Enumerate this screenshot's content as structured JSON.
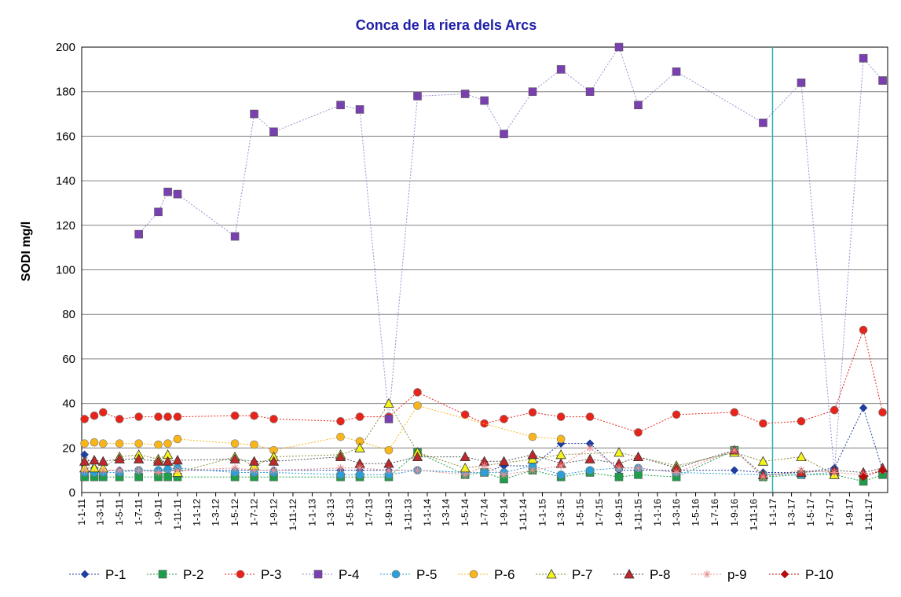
{
  "chart_data": {
    "type": "line",
    "title": "Conca de la riera dels Arcs",
    "ylabel": "SODI   mg/l",
    "xlabel": "",
    "ylim": [
      0,
      200
    ],
    "y_ticks": [
      0,
      20,
      40,
      60,
      80,
      100,
      120,
      140,
      160,
      180,
      200
    ],
    "x_range": [
      "2011-01-01",
      "2017-12-31"
    ],
    "x_ticks": [
      "1-1-11",
      "1-3-11",
      "1-5-11",
      "1-7-11",
      "1-9-11",
      "1-11-11",
      "1-1-12",
      "1-3-12",
      "1-5-12",
      "1-7-12",
      "1-9-12",
      "1-11-12",
      "1-1-13",
      "1-3-13",
      "1-5-13",
      "1-7-13",
      "1-9-13",
      "1-11-13",
      "1-1-14",
      "1-3-14",
      "1-5-14",
      "1-7-14",
      "1-9-14",
      "1-11-14",
      "1-1-15",
      "1-3-15",
      "1-5-15",
      "1-7-15",
      "1-9-15",
      "1-11-15",
      "1-1-16",
      "1-3-16",
      "1-5-16",
      "1-7-16",
      "1-9-16",
      "1-11-16",
      "1-1-17",
      "1-3-17",
      "1-5-17",
      "1-7-17",
      "1-9-17",
      "1-11-17"
    ],
    "grid": "horizontal",
    "legend_position": "bottom",
    "vertical_marker": "2016-12-31",
    "series": [
      {
        "name": "P-1",
        "color": "#1f3f9f",
        "marker": "diamond",
        "line": "#1f3f9f",
        "points": [
          [
            "2011-01-10",
            17
          ],
          [
            "2011-02-10",
            11
          ],
          [
            "2011-03-10",
            10
          ],
          [
            "2011-05-01",
            10
          ],
          [
            "2011-07-01",
            10
          ],
          [
            "2011-09-01",
            10
          ],
          [
            "2011-10-01",
            10
          ],
          [
            "2011-11-01",
            10
          ],
          [
            "2012-05-01",
            10
          ],
          [
            "2012-07-01",
            10
          ],
          [
            "2012-09-01",
            10
          ],
          [
            "2013-04-01",
            10
          ],
          [
            "2013-06-01",
            10
          ],
          [
            "2013-09-01",
            10
          ],
          [
            "2013-12-01",
            10
          ],
          [
            "2014-05-01",
            9
          ],
          [
            "2014-07-01",
            9
          ],
          [
            "2014-09-01",
            12
          ],
          [
            "2014-12-01",
            12
          ],
          [
            "2015-03-01",
            22
          ],
          [
            "2015-06-01",
            22
          ],
          [
            "2015-09-01",
            10
          ],
          [
            "2015-11-01",
            10
          ],
          [
            "2016-03-01",
            10
          ],
          [
            "2016-09-01",
            10
          ],
          [
            "2016-12-01",
            9
          ],
          [
            "2017-04-01",
            9
          ],
          [
            "2017-07-15",
            11
          ],
          [
            "2017-10-15",
            38
          ],
          [
            "2017-12-15",
            10
          ]
        ]
      },
      {
        "name": "P-2",
        "color": "#1e9e4a",
        "marker": "square",
        "line": "#1e9e4a",
        "points": [
          [
            "2011-01-10",
            7
          ],
          [
            "2011-02-10",
            7
          ],
          [
            "2011-03-10",
            7
          ],
          [
            "2011-05-01",
            7
          ],
          [
            "2011-07-01",
            7
          ],
          [
            "2011-09-01",
            7
          ],
          [
            "2011-10-01",
            7
          ],
          [
            "2011-11-01",
            7
          ],
          [
            "2012-05-01",
            7
          ],
          [
            "2012-07-01",
            7
          ],
          [
            "2012-09-01",
            7
          ],
          [
            "2013-04-01",
            7
          ],
          [
            "2013-06-01",
            7
          ],
          [
            "2013-09-01",
            7
          ],
          [
            "2013-12-01",
            18
          ],
          [
            "2014-05-01",
            8
          ],
          [
            "2014-07-01",
            9
          ],
          [
            "2014-09-01",
            6
          ],
          [
            "2014-12-01",
            10
          ],
          [
            "2015-03-01",
            7
          ],
          [
            "2015-06-01",
            9
          ],
          [
            "2015-09-01",
            7
          ],
          [
            "2015-11-01",
            8
          ],
          [
            "2016-03-01",
            7
          ],
          [
            "2016-09-01",
            19
          ],
          [
            "2016-12-01",
            7
          ],
          [
            "2017-04-01",
            8
          ],
          [
            "2017-07-15",
            8
          ],
          [
            "2017-10-15",
            5
          ],
          [
            "2017-12-15",
            8
          ]
        ]
      },
      {
        "name": "P-3",
        "color": "#e8231a",
        "marker": "circle",
        "line": "#e8231a",
        "points": [
          [
            "2011-01-10",
            33
          ],
          [
            "2011-02-10",
            34.5
          ],
          [
            "2011-03-10",
            36
          ],
          [
            "2011-05-01",
            33
          ],
          [
            "2011-07-01",
            34
          ],
          [
            "2011-09-01",
            34
          ],
          [
            "2011-10-01",
            34
          ],
          [
            "2011-11-01",
            34
          ],
          [
            "2012-05-01",
            34.5
          ],
          [
            "2012-07-01",
            34.5
          ],
          [
            "2012-09-01",
            33
          ],
          [
            "2013-04-01",
            32
          ],
          [
            "2013-06-01",
            34
          ],
          [
            "2013-09-01",
            34
          ],
          [
            "2013-12-01",
            45
          ],
          [
            "2014-05-01",
            35
          ],
          [
            "2014-07-01",
            31
          ],
          [
            "2014-09-01",
            33
          ],
          [
            "2014-12-01",
            36
          ],
          [
            "2015-03-01",
            34
          ],
          [
            "2015-06-01",
            34
          ],
          [
            "2015-11-01",
            27
          ],
          [
            "2016-03-01",
            35
          ],
          [
            "2016-09-01",
            36
          ],
          [
            "2016-12-01",
            31
          ],
          [
            "2017-04-01",
            32
          ],
          [
            "2017-07-15",
            37
          ],
          [
            "2017-10-15",
            73
          ],
          [
            "2017-12-15",
            36
          ]
        ]
      },
      {
        "name": "P-4",
        "color": "#7a3fb0",
        "marker": "square",
        "line": "#9a8fd0",
        "points": [
          [
            "2011-07-01",
            116
          ],
          [
            "2011-09-01",
            126
          ],
          [
            "2011-10-01",
            135
          ],
          [
            "2011-11-01",
            134
          ],
          [
            "2012-05-01",
            115
          ],
          [
            "2012-07-01",
            170
          ],
          [
            "2012-09-01",
            162
          ],
          [
            "2013-04-01",
            174
          ],
          [
            "2013-06-01",
            172
          ],
          [
            "2013-09-01",
            33
          ],
          [
            "2013-12-01",
            178
          ],
          [
            "2014-05-01",
            179
          ],
          [
            "2014-07-01",
            176
          ],
          [
            "2014-09-01",
            161
          ],
          [
            "2014-12-01",
            180
          ],
          [
            "2015-03-01",
            190
          ],
          [
            "2015-06-01",
            180
          ],
          [
            "2015-09-01",
            200
          ],
          [
            "2015-11-01",
            174
          ],
          [
            "2016-03-01",
            189
          ],
          [
            "2016-12-01",
            166
          ],
          [
            "2017-04-01",
            184
          ],
          [
            "2017-07-15",
            9
          ],
          [
            "2017-10-15",
            195
          ],
          [
            "2017-12-15",
            185
          ]
        ]
      },
      {
        "name": "P-5",
        "color": "#2b9fd9",
        "marker": "circle",
        "line": "#2b9fd9",
        "points": [
          [
            "2011-01-10",
            9
          ],
          [
            "2011-02-10",
            9
          ],
          [
            "2011-03-10",
            9
          ],
          [
            "2011-05-01",
            9
          ],
          [
            "2011-07-01",
            10
          ],
          [
            "2011-09-01",
            10
          ],
          [
            "2011-10-01",
            10.5
          ],
          [
            "2011-11-01",
            11
          ],
          [
            "2012-05-01",
            9
          ],
          [
            "2012-07-01",
            9
          ],
          [
            "2012-09-01",
            9
          ],
          [
            "2013-04-01",
            8
          ],
          [
            "2013-06-01",
            8
          ],
          [
            "2013-09-01",
            8
          ],
          [
            "2013-12-01",
            10
          ],
          [
            "2014-05-01",
            9
          ],
          [
            "2014-07-01",
            9
          ],
          [
            "2014-09-01",
            9
          ],
          [
            "2014-12-01",
            12
          ],
          [
            "2015-03-01",
            8
          ],
          [
            "2015-06-01",
            10
          ],
          [
            "2015-09-01",
            11
          ],
          [
            "2015-11-01",
            11
          ],
          [
            "2016-03-01",
            9
          ],
          [
            "2016-12-01",
            8
          ],
          [
            "2017-04-01",
            8
          ],
          [
            "2017-07-15",
            9
          ]
        ]
      },
      {
        "name": "P-6",
        "color": "#f9b51a",
        "marker": "circle",
        "line": "#f9b51a",
        "points": [
          [
            "2011-01-10",
            22
          ],
          [
            "2011-02-10",
            22.5
          ],
          [
            "2011-03-10",
            22
          ],
          [
            "2011-05-01",
            22
          ],
          [
            "2011-07-01",
            22
          ],
          [
            "2011-09-01",
            21.5
          ],
          [
            "2011-10-01",
            22
          ],
          [
            "2011-11-01",
            24
          ],
          [
            "2012-05-01",
            22
          ],
          [
            "2012-07-01",
            21.5
          ],
          [
            "2012-09-01",
            19
          ],
          [
            "2013-04-01",
            25
          ],
          [
            "2013-06-01",
            23
          ],
          [
            "2013-09-01",
            19
          ],
          [
            "2013-12-01",
            39
          ],
          [
            "2014-12-01",
            25
          ],
          [
            "2015-03-01",
            24
          ]
        ]
      },
      {
        "name": "P-7",
        "color": "#f5f51a",
        "marker": "triangle",
        "line": "#8a8a3a",
        "points": [
          [
            "2011-01-10",
            11
          ],
          [
            "2011-02-10",
            11
          ],
          [
            "2011-03-10",
            11
          ],
          [
            "2011-05-01",
            16
          ],
          [
            "2011-07-01",
            17
          ],
          [
            "2011-09-01",
            15
          ],
          [
            "2011-10-01",
            17
          ],
          [
            "2011-11-01",
            9
          ],
          [
            "2012-05-01",
            16
          ],
          [
            "2012-07-01",
            12
          ],
          [
            "2012-09-01",
            16
          ],
          [
            "2013-04-01",
            17
          ],
          [
            "2013-06-01",
            20
          ],
          [
            "2013-09-01",
            40
          ],
          [
            "2013-12-01",
            18
          ],
          [
            "2014-05-01",
            11
          ],
          [
            "2014-12-01",
            15
          ],
          [
            "2015-03-01",
            17
          ],
          [
            "2015-09-01",
            18
          ],
          [
            "2016-03-01",
            12
          ],
          [
            "2016-09-01",
            18
          ],
          [
            "2016-12-01",
            14
          ],
          [
            "2017-04-01",
            16
          ],
          [
            "2017-07-15",
            8
          ]
        ]
      },
      {
        "name": "P-8",
        "color": "#c0282c",
        "marker": "triangle",
        "line": "#555555",
        "points": [
          [
            "2011-01-10",
            14
          ],
          [
            "2011-02-10",
            14.5
          ],
          [
            "2011-03-10",
            14
          ],
          [
            "2011-05-01",
            15
          ],
          [
            "2011-07-01",
            15
          ],
          [
            "2011-09-01",
            14
          ],
          [
            "2011-10-01",
            14
          ],
          [
            "2011-11-01",
            14.5
          ],
          [
            "2012-05-01",
            15
          ],
          [
            "2012-07-01",
            14
          ],
          [
            "2012-09-01",
            14
          ],
          [
            "2013-04-01",
            16
          ],
          [
            "2013-06-01",
            13
          ],
          [
            "2013-09-01",
            13
          ],
          [
            "2013-12-01",
            16
          ],
          [
            "2014-05-01",
            16
          ],
          [
            "2014-07-01",
            14
          ],
          [
            "2014-09-01",
            14
          ],
          [
            "2014-12-01",
            17
          ],
          [
            "2015-03-01",
            13
          ],
          [
            "2015-06-01",
            15
          ],
          [
            "2015-09-01",
            13
          ],
          [
            "2015-11-01",
            16
          ],
          [
            "2016-03-01",
            11
          ],
          [
            "2016-09-01",
            19
          ],
          [
            "2016-12-01",
            8
          ],
          [
            "2017-04-01",
            9
          ],
          [
            "2017-07-15",
            10
          ],
          [
            "2017-10-15",
            9
          ],
          [
            "2017-12-15",
            11
          ]
        ]
      },
      {
        "name": "p-9",
        "color": "#e89090",
        "marker": "star",
        "line": "#e89090",
        "points": [
          [
            "2011-01-10",
            10
          ],
          [
            "2011-03-10",
            10
          ],
          [
            "2011-05-01",
            10
          ],
          [
            "2011-07-01",
            10
          ],
          [
            "2011-09-01",
            9
          ],
          [
            "2011-11-01",
            10
          ],
          [
            "2012-05-01",
            11
          ],
          [
            "2012-07-01",
            10
          ],
          [
            "2012-09-01",
            10
          ],
          [
            "2013-04-01",
            11
          ],
          [
            "2013-06-01",
            11
          ],
          [
            "2013-09-01",
            10
          ],
          [
            "2013-12-01",
            10
          ],
          [
            "2014-05-01",
            8
          ],
          [
            "2014-07-01",
            12
          ],
          [
            "2014-09-01",
            8
          ],
          [
            "2014-12-01",
            10
          ],
          [
            "2015-03-01",
            12
          ],
          [
            "2015-06-01",
            20
          ],
          [
            "2015-09-01",
            11
          ],
          [
            "2015-11-01",
            11
          ],
          [
            "2016-03-01",
            9
          ],
          [
            "2016-09-01",
            19
          ],
          [
            "2016-12-01",
            7
          ],
          [
            "2017-04-01",
            10
          ],
          [
            "2017-07-15",
            9
          ],
          [
            "2017-10-15",
            8
          ],
          [
            "2017-12-15",
            10
          ]
        ]
      },
      {
        "name": "P-10",
        "color": "#b80a0a",
        "marker": "diamond",
        "line": "#b80a0a",
        "points": [
          [
            "2017-10-15",
            7
          ],
          [
            "2017-12-15",
            10
          ]
        ]
      }
    ]
  }
}
